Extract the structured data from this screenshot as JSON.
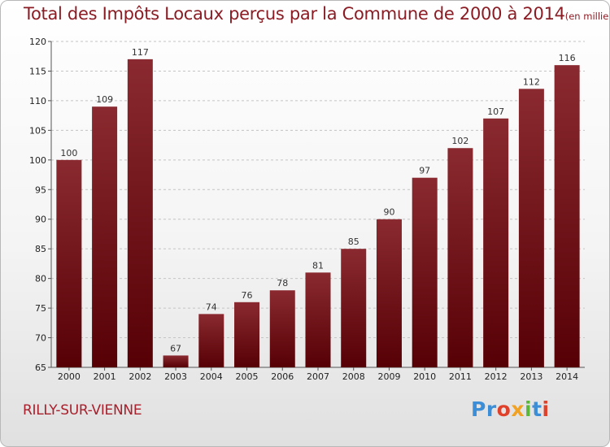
{
  "title": "Total des Impôts Locaux perçus par la Commune de 2000 à 2014",
  "unit": "(en milliers d'€)",
  "commune": "RILLY-SUR-VIENNE",
  "logo": {
    "p1": "Pr",
    "p2": "o",
    "p3": "x",
    "p4": "i",
    "p5": "t",
    "p6": "i"
  },
  "colors": {
    "bar_top": "#8a2a30",
    "bar_bottom": "#560005",
    "title": "#8b1c24"
  },
  "chart_data": {
    "type": "bar",
    "categories": [
      "2000",
      "2001",
      "2002",
      "2003",
      "2004",
      "2005",
      "2006",
      "2007",
      "2008",
      "2009",
      "2010",
      "2011",
      "2012",
      "2013",
      "2014"
    ],
    "values": [
      100,
      109,
      117,
      67,
      74,
      76,
      78,
      81,
      85,
      90,
      97,
      102,
      107,
      112,
      116
    ],
    "ylim": [
      65,
      120
    ],
    "yticks": [
      65,
      70,
      75,
      80,
      85,
      90,
      95,
      100,
      105,
      110,
      115,
      120
    ],
    "grid": true,
    "legend": "none"
  }
}
